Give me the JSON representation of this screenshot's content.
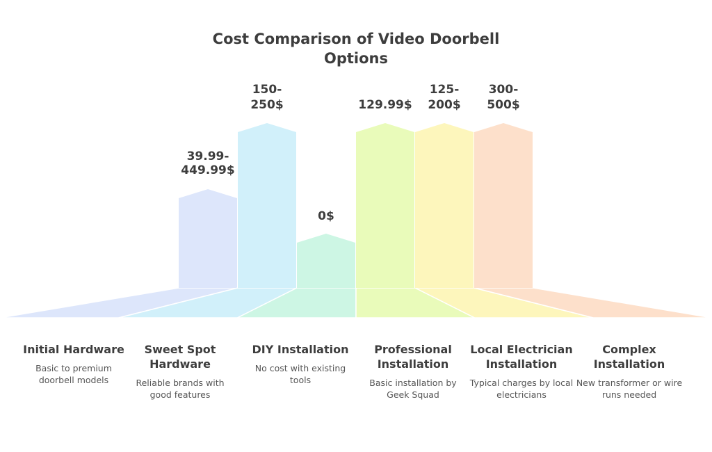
{
  "title": "Cost Comparison of Video Doorbell Options",
  "chart_data": {
    "type": "bar",
    "unit": "$",
    "categories": [
      {
        "name": "Initial Hardware",
        "label": "39.99-449.99$",
        "low": 39.99,
        "high": 449.99,
        "description": "Basic to premium doorbell models",
        "color": "#dde6fb"
      },
      {
        "name": "Sweet Spot Hardware",
        "label": "150-250$",
        "low": 150,
        "high": 250,
        "description": "Reliable brands with good features",
        "color": "#d1f0fa"
      },
      {
        "name": "DIY Installation",
        "label": "0$",
        "low": 0,
        "high": 0,
        "description": "No cost with existing tools",
        "color": "#cdf6e4"
      },
      {
        "name": "Professional Installation",
        "label": "129.99$",
        "low": 129.99,
        "high": 129.99,
        "description": "Basic installation by Geek Squad",
        "color": "#e9fbba"
      },
      {
        "name": "Local Electrician Installation",
        "label": "125-200$",
        "low": 125,
        "high": 200,
        "description": "Typical charges by local electricians",
        "color": "#fdf6bc"
      },
      {
        "name": "Complex Installation",
        "label": "300-500$",
        "low": 300,
        "high": 500,
        "description": "New transformer or wire runs needed",
        "color": "#fde0cb"
      }
    ]
  }
}
